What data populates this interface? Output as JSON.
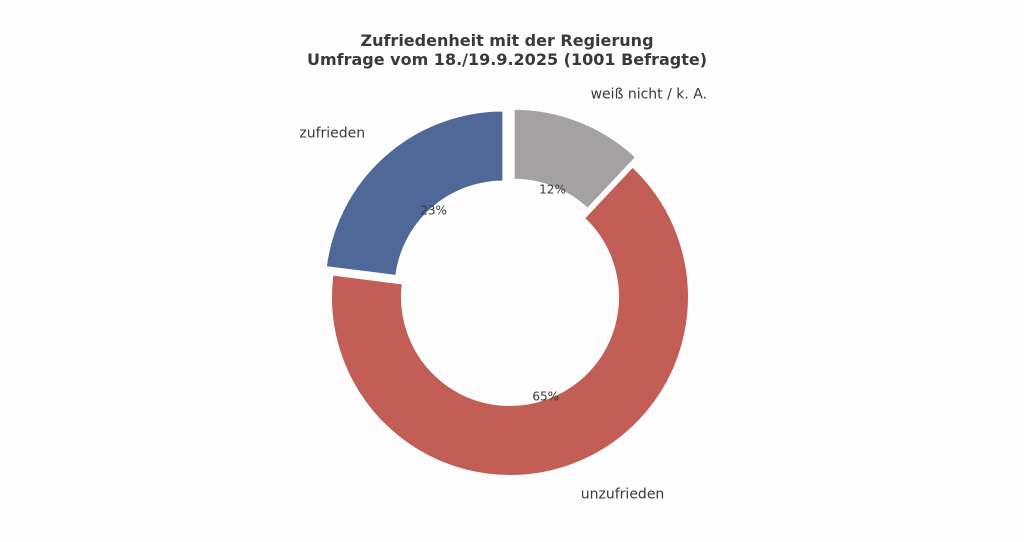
{
  "chart_data": {
    "type": "pie",
    "variant": "donut",
    "title": "Zufriedenheit mit der Regierung",
    "subtitle": "Umfrage vom 18./19.9.2025 (1001 Befragte)",
    "slices": [
      {
        "label": "unzufrieden",
        "value": 65,
        "value_label": "65%",
        "color": "#c25e56"
      },
      {
        "label": "zufrieden",
        "value": 23,
        "value_label": "23%",
        "color": "#4f6898"
      },
      {
        "label": "weiß nicht / k. A.",
        "value": 12,
        "value_label": "12%",
        "color": "#a4a1a3"
      }
    ],
    "legend": "none"
  }
}
